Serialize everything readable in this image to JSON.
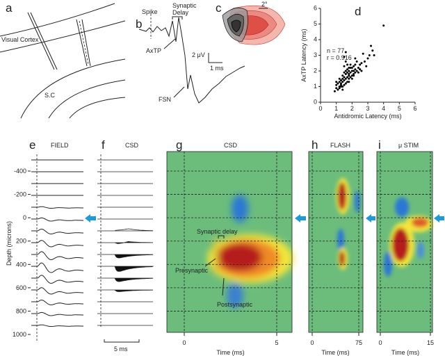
{
  "panel_letters": [
    "a",
    "b",
    "c",
    "d",
    "e",
    "f",
    "g",
    "h",
    "i"
  ],
  "panel_a": {
    "cortex_label": "Visual Cortex",
    "sc_label": "S.C"
  },
  "panel_b": {
    "spike": "Spike",
    "synaptic_delay": [
      "Synaptic",
      "Delay"
    ],
    "axtp": "AxTP",
    "fsn": "FSN",
    "scale_v": "2 μV",
    "scale_t": "1 ms"
  },
  "panel_c": {
    "scale": "2°"
  },
  "chart_data": {
    "type": "scatter",
    "xlabel": "Antidromic Latency (ms)",
    "ylabel": "AxTP Latency (ms)",
    "annotations": [
      "n = 77",
      "r = 0.916"
    ],
    "color": "#000000",
    "x": [
      0.9,
      1.0,
      1.0,
      1.1,
      1.1,
      1.2,
      1.2,
      1.2,
      1.3,
      1.3,
      1.3,
      1.4,
      1.4,
      1.4,
      1.4,
      1.5,
      1.5,
      1.5,
      1.5,
      1.5,
      1.6,
      1.6,
      1.6,
      1.6,
      1.6,
      1.7,
      1.7,
      1.7,
      1.7,
      1.8,
      1.8,
      1.8,
      1.8,
      1.9,
      1.9,
      1.9,
      2.0,
      2.0,
      2.0,
      2.1,
      2.1,
      2.1,
      2.2,
      2.2,
      2.2,
      2.3,
      2.3,
      2.4,
      2.4,
      2.5,
      2.5,
      2.6,
      2.6,
      2.7,
      2.8,
      2.9,
      3.0,
      3.1,
      3.2,
      3.3,
      3.4,
      4.0,
      1.0,
      1.2,
      1.3,
      1.5,
      1.6,
      1.7,
      1.8,
      1.9,
      2.0,
      2.1,
      1.4,
      1.6,
      2.2,
      2.5,
      1.8
    ],
    "y": [
      0.7,
      0.9,
      1.1,
      0.8,
      1.2,
      1.0,
      1.3,
      0.9,
      1.1,
      1.4,
      1.2,
      1.0,
      1.3,
      1.5,
      1.7,
      1.1,
      1.4,
      1.6,
      1.9,
      2.3,
      1.2,
      1.5,
      1.8,
      2.0,
      2.6,
      1.3,
      1.6,
      1.9,
      2.1,
      1.5,
      1.8,
      2.0,
      2.2,
      1.6,
      1.9,
      2.4,
      1.7,
      2.0,
      2.2,
      1.8,
      2.0,
      2.3,
      1.9,
      2.1,
      2.4,
      2.0,
      2.6,
      2.2,
      1.9,
      2.1,
      2.4,
      2.0,
      2.5,
      3.1,
      2.6,
      2.3,
      2.8,
      3.0,
      3.6,
      3.3,
      3.0,
      4.9,
      1.3,
      1.5,
      1.0,
      2.9,
      1.2,
      2.4,
      1.3,
      2.2,
      1.5,
      1.7,
      0.8,
      3.2,
      2.8,
      2.1,
      1.7
    ],
    "xlim": [
      0,
      6
    ],
    "ylim": [
      0,
      6
    ],
    "xticks": [
      0,
      1,
      2,
      3,
      4,
      5,
      6
    ],
    "yticks": [
      0,
      1,
      2,
      3,
      4,
      5,
      6
    ]
  },
  "panel_e": {
    "title": "FIELD",
    "depth_label": "Depth (microns)",
    "depth_ticks": [
      -400,
      -200,
      0,
      200,
      400,
      600,
      800,
      1000
    ]
  },
  "panel_f": {
    "title": "CSD",
    "scale": "5 ms"
  },
  "panel_g": {
    "title": "CSD",
    "synaptic_delay": "Synaptic delay",
    "presynaptic": "Presynaptic",
    "postsynaptic": "Postsynaptic",
    "time_ticks": [
      0,
      5
    ],
    "time_label": "Time (ms)"
  },
  "panel_h": {
    "title": "FLASH",
    "time_ticks": [
      0,
      75
    ],
    "time_label": "Time (ms)"
  },
  "panel_i": {
    "title": "μ STIM",
    "time_ticks": [
      0,
      15
    ],
    "time_label": "Time (ms)"
  }
}
